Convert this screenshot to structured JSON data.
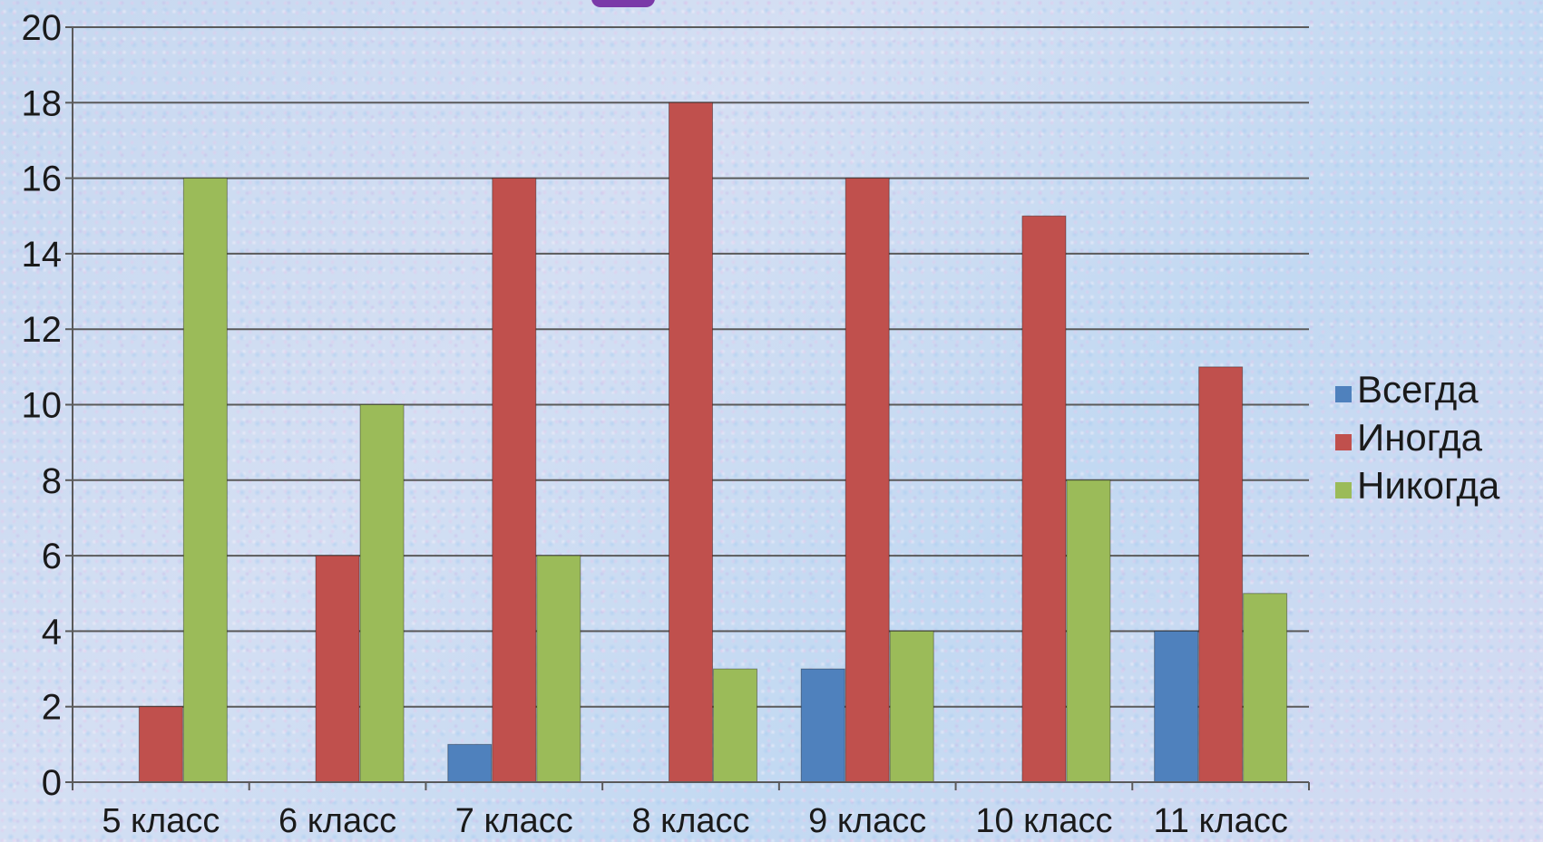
{
  "chart_data": {
    "type": "bar",
    "categories": [
      "5 класс",
      "6 класс",
      "7 класс",
      "8 класс",
      "9 класс",
      "10 класс",
      "11 класс"
    ],
    "series": [
      {
        "name": "Всегда",
        "color": "#4f81bd",
        "values": [
          0,
          0,
          1,
          0,
          3,
          0,
          4
        ]
      },
      {
        "name": "Иногда",
        "color": "#c0504d",
        "values": [
          2,
          6,
          16,
          18,
          16,
          15,
          11
        ]
      },
      {
        "name": "Никогда",
        "color": "#9bbb59",
        "values": [
          16,
          10,
          6,
          3,
          4,
          8,
          5
        ]
      }
    ],
    "ylim": [
      0,
      20
    ],
    "yticks": [
      "0",
      "2",
      "4",
      "6",
      "8",
      "10",
      "12",
      "14",
      "16",
      "18",
      "20"
    ],
    "grid": true,
    "legend": "right"
  }
}
